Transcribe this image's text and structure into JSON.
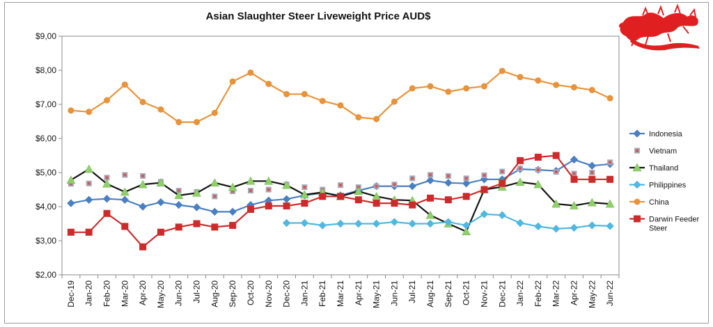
{
  "chart_data": {
    "type": "line",
    "title": "Asian Slaughter Steer Liveweight Price AUD$",
    "xlabel": "",
    "ylabel": "",
    "ylim": [
      2,
      9
    ],
    "yticks": [
      "$2,00",
      "$3,00",
      "$4,00",
      "$5,00",
      "$6,00",
      "$7,00",
      "$8,00",
      "$9,00"
    ],
    "grid": false,
    "legend_position": "right",
    "categories": [
      "Dec-19",
      "Jan-20",
      "Feb-20",
      "Mar-20",
      "Apr-20",
      "May-20",
      "Jun-20",
      "Jul-20",
      "Aug-20",
      "Sep-20",
      "Oct-20",
      "Nov-20",
      "Dec-20",
      "Jan-21",
      "Feb-21",
      "Mar-21",
      "Apr-21",
      "May-21",
      "Jun-21",
      "Jul-21",
      "Aug-21",
      "Sep-21",
      "Oct-21",
      "Nov-21",
      "Dec-21",
      "Jan-22",
      "Feb-22",
      "Mar-22",
      "Apr-22",
      "May-22",
      "Jun-22"
    ],
    "series": [
      {
        "name": "Indonesia",
        "color": "#4a7fc1",
        "marker": "diamond",
        "line": true,
        "values": [
          4.1,
          4.2,
          4.23,
          4.2,
          4.0,
          4.13,
          4.05,
          3.98,
          3.85,
          3.85,
          4.05,
          4.18,
          4.22,
          4.33,
          4.4,
          4.33,
          4.47,
          4.6,
          4.6,
          4.6,
          4.77,
          4.7,
          4.68,
          4.8,
          4.8,
          5.1,
          5.08,
          5.05,
          5.38,
          5.2,
          5.25
        ]
      },
      {
        "name": "Vietnam",
        "color": "#d05656",
        "marker_fill": "#a8a8b8",
        "marker": "square-dot",
        "line": false,
        "values": [
          4.67,
          4.68,
          4.85,
          4.93,
          4.9,
          4.73,
          4.47,
          4.43,
          4.3,
          4.45,
          4.47,
          4.5,
          4.65,
          4.57,
          4.5,
          4.63,
          4.57,
          4.6,
          4.65,
          4.83,
          4.93,
          4.9,
          4.83,
          4.92,
          5.03,
          5.12,
          5.08,
          5.02,
          4.97,
          5.0,
          5.3
        ]
      },
      {
        "name": "Thailand",
        "color": "#111111",
        "marker_fill": "#8fd06a",
        "marker": "triangle",
        "line": true,
        "values": [
          4.78,
          5.1,
          4.67,
          4.43,
          4.65,
          4.7,
          4.33,
          4.4,
          4.7,
          4.57,
          4.75,
          4.75,
          4.63,
          4.35,
          4.42,
          4.3,
          4.45,
          4.3,
          4.2,
          4.18,
          3.75,
          3.5,
          3.27,
          4.5,
          4.58,
          4.72,
          4.65,
          4.08,
          4.03,
          4.12,
          4.08
        ]
      },
      {
        "name": "Philippines",
        "color": "#4fb7e0",
        "marker": "diamond",
        "line": true,
        "values": [
          null,
          null,
          null,
          null,
          null,
          null,
          null,
          null,
          null,
          null,
          null,
          null,
          3.52,
          3.52,
          3.45,
          3.5,
          3.5,
          3.5,
          3.55,
          3.5,
          3.5,
          3.55,
          3.45,
          3.78,
          3.75,
          3.52,
          3.42,
          3.35,
          3.38,
          3.45,
          3.43
        ]
      },
      {
        "name": "China",
        "color": "#e8923a",
        "marker": "circle",
        "line": true,
        "values": [
          6.82,
          6.78,
          7.12,
          7.58,
          7.07,
          6.85,
          6.48,
          6.48,
          6.75,
          7.67,
          7.93,
          7.6,
          7.3,
          7.3,
          7.1,
          6.97,
          6.62,
          6.57,
          7.08,
          7.47,
          7.53,
          7.37,
          7.47,
          7.53,
          7.98,
          7.8,
          7.7,
          7.57,
          7.5,
          7.42,
          7.18
        ]
      },
      {
        "name": "Darwin Feeder Steer",
        "color": "#cc2b2b",
        "marker": "square",
        "line": true,
        "values": [
          3.25,
          3.25,
          3.8,
          3.42,
          2.82,
          3.25,
          3.4,
          3.5,
          3.4,
          3.45,
          3.92,
          4.02,
          4.02,
          4.1,
          4.3,
          4.3,
          4.2,
          4.1,
          4.1,
          4.05,
          4.25,
          4.2,
          4.3,
          4.5,
          4.68,
          5.35,
          5.45,
          5.5,
          4.8,
          4.8,
          4.8
        ]
      }
    ]
  },
  "logo": {
    "name": "red-dragon-logo",
    "color": "#e02020"
  }
}
